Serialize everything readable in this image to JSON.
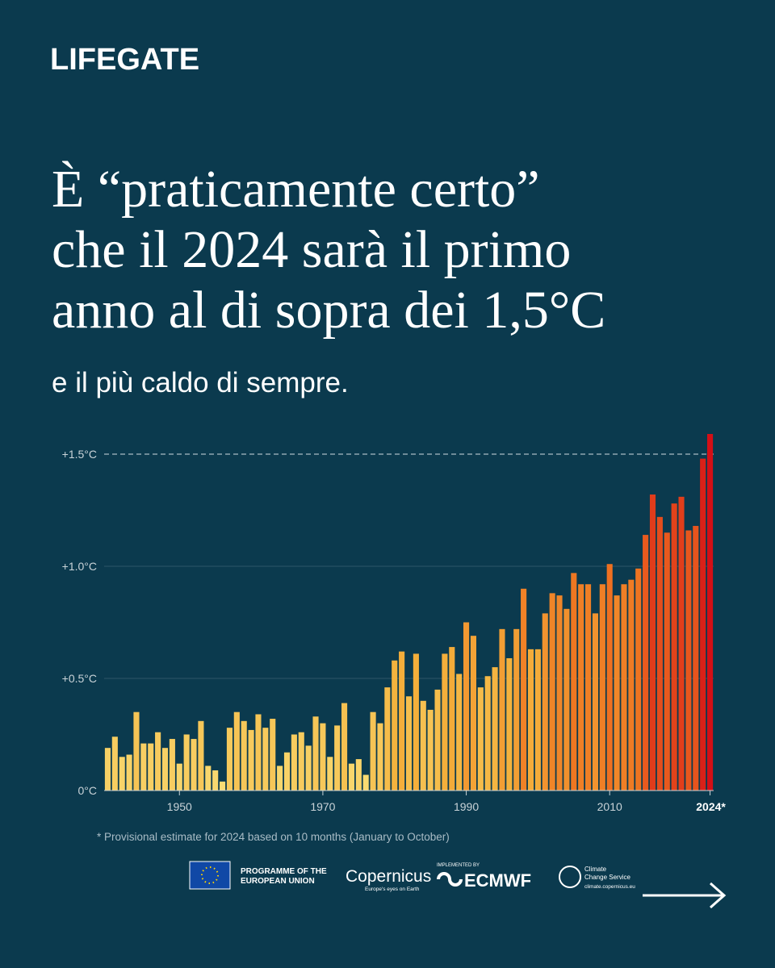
{
  "brand": "LIFEGATE",
  "headline": [
    "È “praticamente certo”",
    "che il 2024 sarà il primo",
    "anno al di sopra dei 1,5°C"
  ],
  "subheadline": "e il più caldo di sempre.",
  "footnote": "* Provisional estimate for 2024 based on 10 months (January to October)",
  "logos": {
    "eu": [
      "PROGRAMME OF THE",
      "EUROPEAN UNION"
    ],
    "copernicus": "Copernicus",
    "copernicus_tagline": "Europe's eyes on Earth",
    "ecmwf_pre": "IMPLEMENTED BY",
    "ecmwf": "ECMWF",
    "c3s": [
      "Climate",
      "Change Service"
    ],
    "c3s_url": "climate.copernicus.eu"
  },
  "chart_data": {
    "type": "bar",
    "x": [
      1940,
      1941,
      1942,
      1943,
      1944,
      1945,
      1946,
      1947,
      1948,
      1949,
      1950,
      1951,
      1952,
      1953,
      1954,
      1955,
      1956,
      1957,
      1958,
      1959,
      1960,
      1961,
      1962,
      1963,
      1964,
      1965,
      1966,
      1967,
      1968,
      1969,
      1970,
      1971,
      1972,
      1973,
      1974,
      1975,
      1976,
      1977,
      1978,
      1979,
      1980,
      1981,
      1982,
      1983,
      1984,
      1985,
      1986,
      1987,
      1988,
      1989,
      1990,
      1991,
      1992,
      1993,
      1994,
      1995,
      1996,
      1997,
      1998,
      1999,
      2000,
      2001,
      2002,
      2003,
      2004,
      2005,
      2006,
      2007,
      2008,
      2009,
      2010,
      2011,
      2012,
      2013,
      2014,
      2015,
      2016,
      2017,
      2018,
      2019,
      2020,
      2021,
      2022,
      2023,
      2024
    ],
    "values": [
      0.19,
      0.24,
      0.15,
      0.16,
      0.35,
      0.21,
      0.21,
      0.26,
      0.19,
      0.23,
      0.12,
      0.25,
      0.23,
      0.31,
      0.11,
      0.09,
      0.04,
      0.28,
      0.35,
      0.31,
      0.27,
      0.34,
      0.28,
      0.32,
      0.11,
      0.17,
      0.25,
      0.26,
      0.2,
      0.33,
      0.3,
      0.15,
      0.29,
      0.39,
      0.12,
      0.14,
      0.07,
      0.35,
      0.3,
      0.46,
      0.58,
      0.62,
      0.42,
      0.61,
      0.4,
      0.36,
      0.45,
      0.61,
      0.64,
      0.52,
      0.75,
      0.69,
      0.46,
      0.51,
      0.55,
      0.72,
      0.59,
      0.72,
      0.9,
      0.63,
      0.63,
      0.79,
      0.88,
      0.87,
      0.81,
      0.97,
      0.92,
      0.92,
      0.79,
      0.92,
      1.01,
      0.87,
      0.92,
      0.94,
      0.99,
      1.14,
      1.32,
      1.22,
      1.15,
      1.28,
      1.31,
      1.16,
      1.18,
      1.48,
      1.59
    ],
    "xlim": [
      1939.5,
      2024.5
    ],
    "xticks": [
      1950,
      1970,
      1990,
      2010,
      {
        "value": 2024,
        "label": "2024*"
      }
    ],
    "ylim": [
      0,
      1.5
    ],
    "yticks": [
      {
        "value": 0,
        "label": "0°C"
      },
      {
        "value": 0.5,
        "label": "+0.5°C"
      },
      {
        "value": 1,
        "label": "+1.0°C"
      },
      {
        "value": 1.5,
        "label": "+1.5°C"
      }
    ],
    "grid": true,
    "reference_line": 1.5,
    "colormap": [
      {
        "value": 0,
        "color": "#f9df78"
      },
      {
        "value": 0.6,
        "color": "#f4b13c"
      },
      {
        "value": 1.0,
        "color": "#ee7220"
      },
      {
        "value": 1.6,
        "color": "#d40d16"
      }
    ]
  }
}
